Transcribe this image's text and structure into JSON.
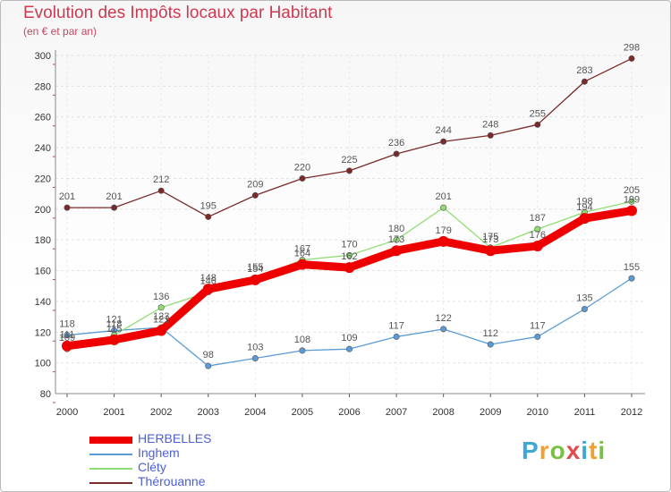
{
  "header": {
    "title": "Evolution des Impôts locaux par Habitant",
    "subtitle": "(en € et par an)"
  },
  "chart_data": {
    "type": "line",
    "title": "Evolution des Impôts locaux par Habitant",
    "subtitle": "(en € et par an)",
    "xlabel": "",
    "ylabel": "",
    "ylim": [
      80,
      300
    ],
    "yticks": [
      80,
      100,
      120,
      140,
      160,
      180,
      200,
      220,
      240,
      260,
      280,
      300
    ],
    "grid": true,
    "legend_position": "bottom-left",
    "x": [
      "2000",
      "2001",
      "2002",
      "2003",
      "2004",
      "2005",
      "2006",
      "2007",
      "2008",
      "2009",
      "2010",
      "2011",
      "2012"
    ],
    "series": [
      {
        "name": "Thérouanne",
        "color": "#7a2a2a",
        "values": [
          201,
          201,
          212,
          195,
          209,
          220,
          225,
          236,
          244,
          248,
          255,
          283,
          298
        ]
      },
      {
        "name": "Inghem",
        "color": "#5b9bd5",
        "values": [
          118,
          121,
          123,
          98,
          103,
          108,
          109,
          117,
          122,
          112,
          117,
          135,
          155
        ]
      },
      {
        "name": "Cléty",
        "color": "#90dd74",
        "values": [
          109,
          118,
          136,
          146,
          155,
          167,
          170,
          180,
          201,
          175,
          187,
          198,
          205
        ]
      },
      {
        "name": "HERBELLES",
        "color": "#ee0000",
        "values": [
          111,
          115,
          121,
          148,
          154,
          164,
          162,
          173,
          179,
          173,
          176,
          194,
          199
        ]
      }
    ]
  },
  "legend": {
    "items": [
      {
        "label": "HERBELLES",
        "color": "#ee0000"
      },
      {
        "label": "Inghem",
        "color": "#5b9bd5"
      },
      {
        "label": "Cléty",
        "color": "#90dd74"
      },
      {
        "label": "Thérouanne",
        "color": "#7a2a2a"
      }
    ]
  },
  "logo": {
    "letters": [
      "P",
      "r",
      "o",
      "x",
      "i",
      "t",
      "i"
    ],
    "colors": [
      "#3fa7d6",
      "#f0a030",
      "#7ac143",
      "#e14b4b",
      "#3fa7d6",
      "#f0a030",
      "#7ac143"
    ]
  }
}
